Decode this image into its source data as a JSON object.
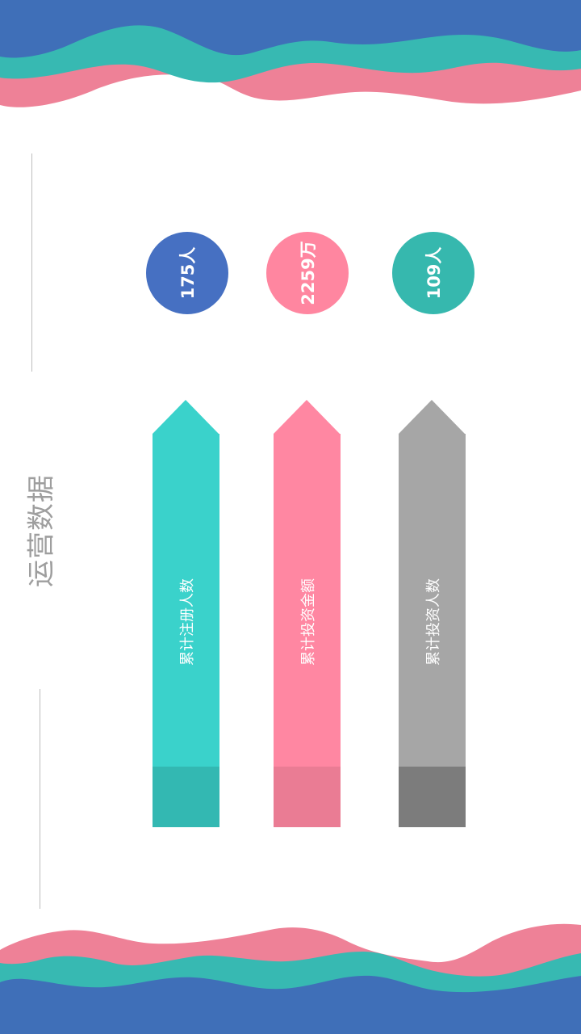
{
  "page": {
    "title": "运营数据"
  },
  "colors": {
    "wave_blue": "#3F6FB8",
    "wave_teal": "#37B9B2",
    "wave_pink": "#EE8197"
  },
  "stats": [
    {
      "value": "175人",
      "color": "#4670C2"
    },
    {
      "value": "2259万",
      "color": "#FF86A0"
    },
    {
      "value": "109人",
      "color": "#36B8AE"
    }
  ],
  "metrics": [
    {
      "label": "累计注册人数",
      "main_color": "#3AD2CB",
      "base_color": "#33B8B2"
    },
    {
      "label": "累计投资金额",
      "main_color": "#FF87A2",
      "base_color": "#EA7C94"
    },
    {
      "label": "累计投资人数",
      "main_color": "#A6A6A6",
      "base_color": "#7C7C7C"
    }
  ]
}
